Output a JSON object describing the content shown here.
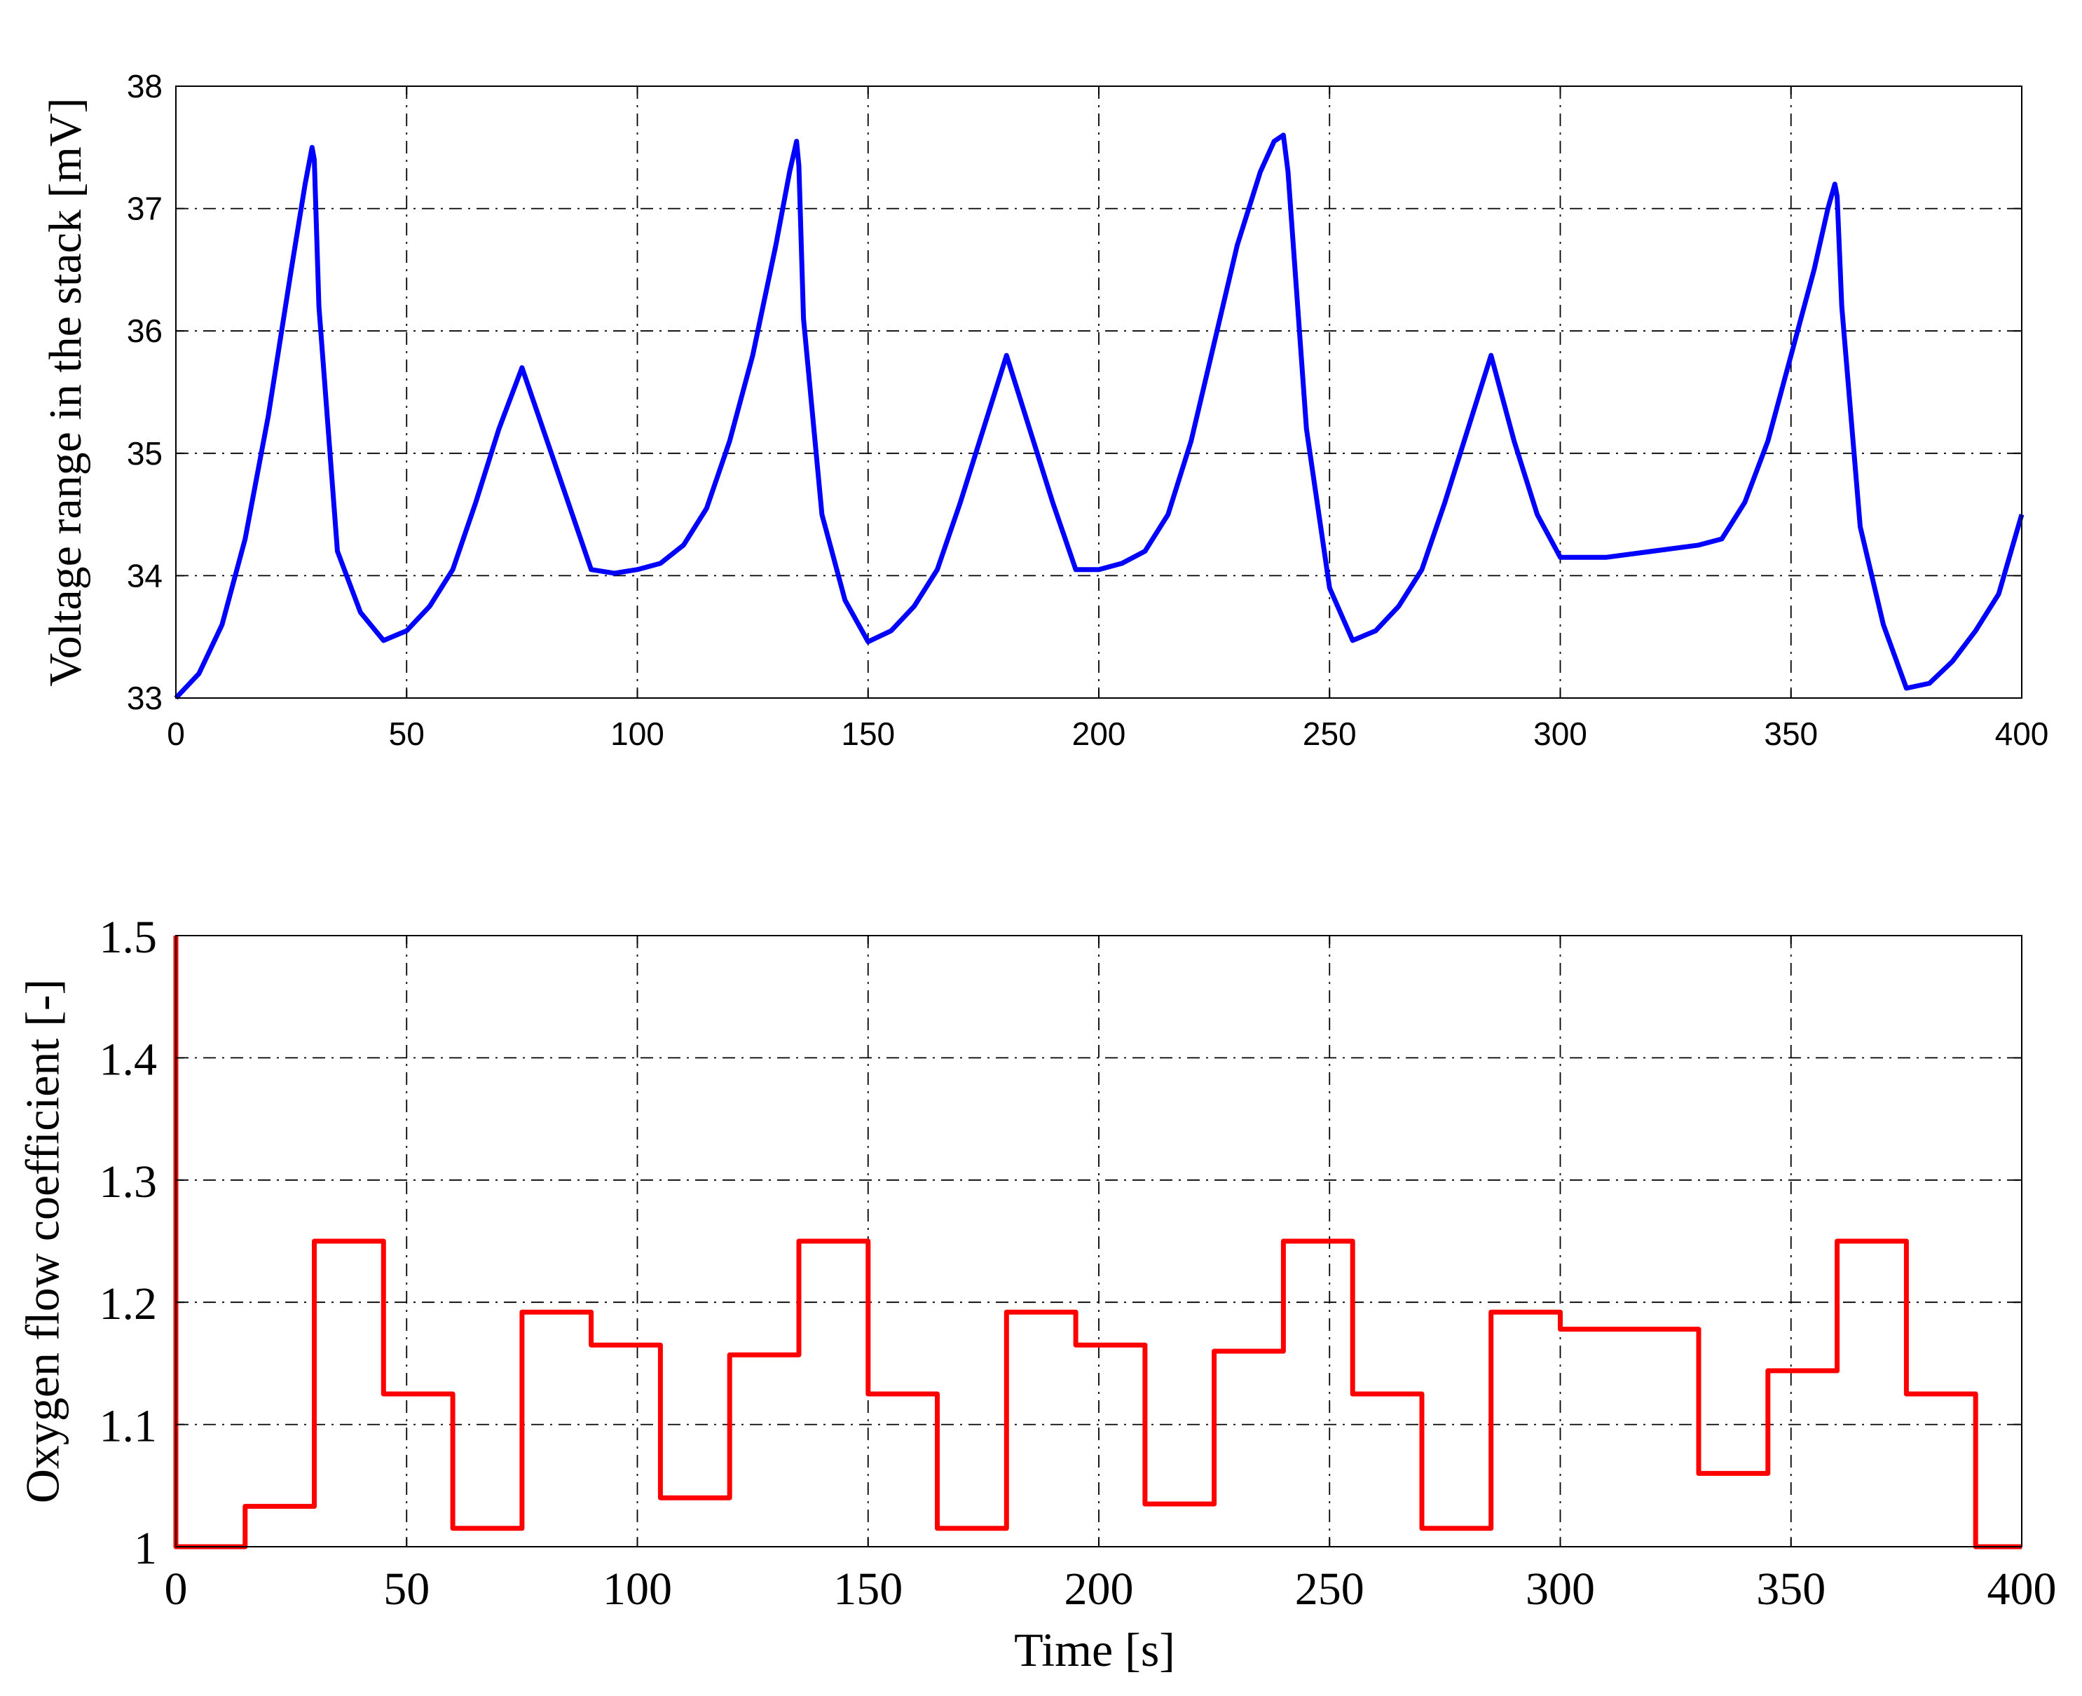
{
  "chart_data": [
    {
      "type": "line",
      "title": "",
      "xlabel": "",
      "ylabel": "Voltage range in the stack [mV]",
      "xlim": [
        0,
        400
      ],
      "ylim": [
        33,
        38
      ],
      "xticks": [
        "0",
        "50",
        "100",
        "150",
        "200",
        "250",
        "300",
        "350",
        "400"
      ],
      "yticks": [
        "33",
        "34",
        "35",
        "36",
        "37",
        "38"
      ],
      "grid": true,
      "color": "#0000ff",
      "series": [
        {
          "x": [
            0,
            5,
            10,
            15,
            20,
            25,
            28,
            29.5,
            30,
            31,
            35,
            40,
            45,
            50,
            55,
            60,
            65,
            70,
            75,
            80,
            85,
            90,
            95,
            100,
            105,
            110,
            115,
            120,
            125,
            130,
            133,
            134.5,
            135,
            136,
            140,
            145,
            150,
            155,
            160,
            165,
            170,
            175,
            180,
            185,
            190,
            195,
            200,
            205,
            210,
            215,
            220,
            225,
            230,
            235,
            238,
            240,
            241,
            245,
            250,
            255,
            260,
            265,
            270,
            275,
            280,
            285,
            290,
            295,
            300,
            310,
            320,
            330,
            335,
            340,
            345,
            350,
            355,
            358,
            359.5,
            360,
            361,
            365,
            370,
            375,
            380,
            385,
            390,
            395,
            400
          ],
          "y": [
            33.0,
            33.2,
            33.6,
            34.3,
            35.3,
            36.5,
            37.2,
            37.5,
            37.4,
            36.2,
            34.2,
            33.7,
            33.47,
            33.55,
            33.75,
            34.05,
            34.6,
            35.2,
            35.7,
            35.15,
            34.6,
            34.05,
            34.02,
            34.05,
            34.1,
            34.25,
            34.55,
            35.1,
            35.8,
            36.7,
            37.3,
            37.55,
            37.35,
            36.1,
            34.5,
            33.8,
            33.46,
            33.55,
            33.75,
            34.05,
            34.6,
            35.2,
            35.8,
            35.2,
            34.6,
            34.05,
            34.05,
            34.1,
            34.2,
            34.5,
            35.1,
            35.9,
            36.7,
            37.3,
            37.55,
            37.6,
            37.3,
            35.2,
            33.9,
            33.47,
            33.55,
            33.75,
            34.05,
            34.6,
            35.2,
            35.8,
            35.1,
            34.5,
            34.15,
            34.15,
            34.2,
            34.25,
            34.3,
            34.6,
            35.1,
            35.8,
            36.5,
            37.0,
            37.2,
            37.1,
            36.2,
            34.4,
            33.6,
            33.08,
            33.12,
            33.3,
            33.55,
            33.85,
            34.5
          ]
        }
      ]
    },
    {
      "type": "line",
      "title": "",
      "xlabel": "Time [s]",
      "ylabel": "Oxygen flow coefficient [-]",
      "xlim": [
        0,
        400
      ],
      "ylim": [
        1,
        1.5
      ],
      "xticks": [
        "0",
        "50",
        "100",
        "150",
        "200",
        "250",
        "300",
        "350",
        "400"
      ],
      "yticks": [
        "1",
        "1.1",
        "1.2",
        "1.3",
        "1.4",
        "1.5"
      ],
      "grid": true,
      "color": "#ff0000",
      "series": [
        {
          "x": [
            0,
            0,
            15,
            15,
            30,
            30,
            45,
            45,
            60,
            60,
            75,
            75,
            90,
            90,
            105,
            105,
            120,
            120,
            135,
            135,
            150,
            150,
            165,
            165,
            180,
            180,
            195,
            195,
            210,
            210,
            225,
            225,
            240,
            240,
            255,
            255,
            270,
            270,
            285,
            285,
            300,
            300,
            330,
            330,
            345,
            345,
            360,
            360,
            375,
            375,
            390,
            390,
            400
          ],
          "y": [
            1.5,
            1.0,
            1.0,
            1.033,
            1.033,
            1.25,
            1.25,
            1.125,
            1.125,
            1.015,
            1.015,
            1.192,
            1.192,
            1.165,
            1.165,
            1.04,
            1.04,
            1.157,
            1.157,
            1.25,
            1.25,
            1.125,
            1.125,
            1.015,
            1.015,
            1.192,
            1.192,
            1.165,
            1.165,
            1.035,
            1.035,
            1.16,
            1.16,
            1.25,
            1.25,
            1.125,
            1.125,
            1.015,
            1.015,
            1.192,
            1.192,
            1.178,
            1.178,
            1.06,
            1.06,
            1.144,
            1.144,
            1.25,
            1.25,
            1.125,
            1.125,
            1.0,
            1.0
          ]
        }
      ]
    }
  ]
}
